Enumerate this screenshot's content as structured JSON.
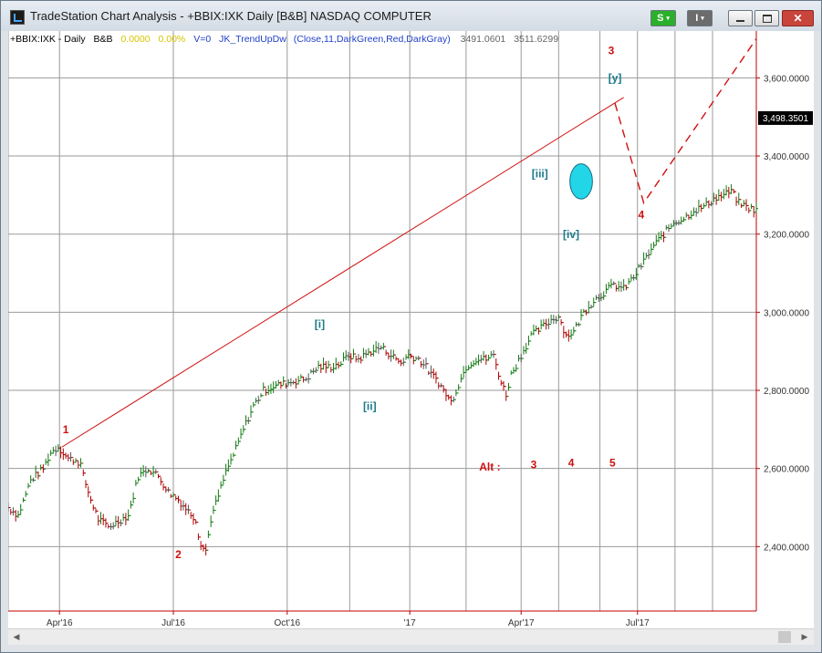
{
  "window": {
    "title": "TradeStation Chart Analysis - +BBIX:IXK Daily [B&B] NASDAQ COMPUTER",
    "s_button": "S",
    "i_button": "I",
    "minimize_icon": "minimize-icon",
    "maximize_icon": "maximize-icon",
    "close_icon": "close-icon"
  },
  "header": {
    "symbol": "+BBIX:IXK - Daily",
    "study": "B&B",
    "val1": "0.0000",
    "val2": "0.00%",
    "v0": "V=0",
    "indicator": "JK_TrendUpDw",
    "params": "(Close,11,DarkGreen,Red,DarkGray)",
    "low_value": "3491.0601",
    "high_value": "3511.6299"
  },
  "colors": {
    "up": "#127a12",
    "down": "#b00000",
    "neutral": "#555555",
    "wave_label": "#d01010",
    "wave_sub": "#1a7a8a",
    "trendline": "#d01010",
    "ellipse": "#22d6e8",
    "axis": "#c00000"
  },
  "chart_data": {
    "type": "bar",
    "price_axis": {
      "ylim": [
        2235,
        3720
      ],
      "ticks": [
        2400,
        2600,
        2800,
        3000,
        3200,
        3400,
        3600
      ],
      "tick_labels": [
        "2,400.0000",
        "2,600.0000",
        "2,800.0000",
        "3,000.0000",
        "3,200.0000",
        "3,400.0000",
        "3,600.0000"
      ],
      "last_price_label": "3,498.3501",
      "last_price": 3498.35
    },
    "time_axis": {
      "labels": [
        "Apr'16",
        "Jul'16",
        "Oct'16",
        "'17",
        "Apr'17",
        "Jul'17"
      ],
      "label_days": [
        41,
        132,
        223,
        321,
        410,
        503
      ],
      "range_days": [
        0,
        598
      ],
      "gridline_days": [
        0,
        41,
        132,
        223,
        273,
        321,
        366,
        410,
        440,
        473,
        503,
        533,
        563
      ]
    },
    "price_path": [
      [
        0,
        2500
      ],
      [
        8,
        2480
      ],
      [
        18,
        2570
      ],
      [
        28,
        2600
      ],
      [
        34,
        2640
      ],
      [
        40,
        2655
      ],
      [
        48,
        2625
      ],
      [
        55,
        2620
      ],
      [
        58,
        2610
      ],
      [
        60,
        2580
      ],
      [
        66,
        2520
      ],
      [
        72,
        2470
      ],
      [
        80,
        2450
      ],
      [
        88,
        2465
      ],
      [
        96,
        2480
      ],
      [
        104,
        2580
      ],
      [
        112,
        2600
      ],
      [
        120,
        2580
      ],
      [
        128,
        2540
      ],
      [
        136,
        2520
      ],
      [
        144,
        2490
      ],
      [
        150,
        2470
      ],
      [
        152,
        2430
      ],
      [
        155,
        2400
      ],
      [
        158,
        2390
      ],
      [
        162,
        2470
      ],
      [
        168,
        2530
      ],
      [
        174,
        2590
      ],
      [
        182,
        2650
      ],
      [
        188,
        2700
      ],
      [
        196,
        2760
      ],
      [
        204,
        2800
      ],
      [
        212,
        2810
      ],
      [
        224,
        2820
      ],
      [
        238,
        2830
      ],
      [
        248,
        2860
      ],
      [
        258,
        2860
      ],
      [
        266,
        2870
      ],
      [
        272,
        2890
      ],
      [
        280,
        2880
      ],
      [
        290,
        2900
      ],
      [
        298,
        2910
      ],
      [
        306,
        2890
      ],
      [
        314,
        2870
      ],
      [
        320,
        2890
      ],
      [
        328,
        2880
      ],
      [
        334,
        2860
      ],
      [
        338,
        2840
      ],
      [
        342,
        2830
      ],
      [
        346,
        2810
      ],
      [
        350,
        2790
      ],
      [
        354,
        2770
      ],
      [
        358,
        2800
      ],
      [
        366,
        2860
      ],
      [
        374,
        2880
      ],
      [
        382,
        2880
      ],
      [
        388,
        2890
      ],
      [
        394,
        2820
      ],
      [
        398,
        2790
      ],
      [
        402,
        2840
      ],
      [
        410,
        2890
      ],
      [
        418,
        2940
      ],
      [
        426,
        2960
      ],
      [
        434,
        2980
      ],
      [
        440,
        2990
      ],
      [
        446,
        2940
      ],
      [
        452,
        2950
      ],
      [
        460,
        3000
      ],
      [
        468,
        3030
      ],
      [
        476,
        3050
      ],
      [
        484,
        3070
      ],
      [
        492,
        3060
      ],
      [
        500,
        3090
      ],
      [
        508,
        3130
      ],
      [
        516,
        3170
      ],
      [
        524,
        3200
      ],
      [
        532,
        3230
      ],
      [
        540,
        3240
      ],
      [
        548,
        3260
      ],
      [
        556,
        3270
      ],
      [
        564,
        3290
      ],
      [
        572,
        3300
      ],
      [
        578,
        3310
      ],
      [
        584,
        3280
      ],
      [
        590,
        3270
      ],
      [
        598,
        3260
      ]
    ],
    "wave_labels": [
      {
        "text": "1",
        "day": 46,
        "price": 2690,
        "group": "primary"
      },
      {
        "text": "2",
        "day": 136,
        "price": 2370,
        "group": "primary"
      },
      {
        "text": "3",
        "day": 482,
        "price": 3660,
        "group": "primary"
      },
      {
        "text": "4",
        "day": 506,
        "price": 3240,
        "group": "primary"
      },
      {
        "text": "[i]",
        "day": 249,
        "price": 2960,
        "group": "minor"
      },
      {
        "text": "[ii]",
        "day": 289,
        "price": 2750,
        "group": "minor"
      },
      {
        "text": "[iii]",
        "day": 425,
        "price": 3345,
        "group": "minor"
      },
      {
        "text": "[iv]",
        "day": 450,
        "price": 3190,
        "group": "minor"
      },
      {
        "text": "[y]",
        "day": 485,
        "price": 3590,
        "group": "minor"
      }
    ],
    "alt_labels": [
      {
        "text": "Alt :",
        "day": 385,
        "price": 2595
      },
      {
        "text": "3",
        "day": 420,
        "price": 2600
      },
      {
        "text": "4",
        "day": 450,
        "price": 2605
      },
      {
        "text": "5",
        "day": 483,
        "price": 2605
      }
    ],
    "trendline": [
      [
        43,
        2655
      ],
      [
        492,
        3550
      ]
    ],
    "projection": [
      [
        485,
        3535
      ],
      [
        508,
        3280
      ],
      [
        598,
        3700
      ]
    ],
    "ellipse": {
      "day": 458,
      "price": 3335,
      "rx_days": 9,
      "ry_price": 45
    }
  }
}
